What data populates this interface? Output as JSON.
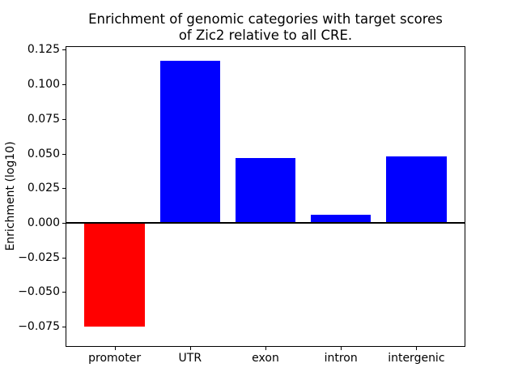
{
  "chart_data": {
    "type": "bar",
    "title": "Enrichment of genomic categories with target scores\nof Zic2 relative to all CRE.",
    "xlabel": "",
    "ylabel": "Enrichment (log10)",
    "categories": [
      "promoter",
      "UTR",
      "exon",
      "intron",
      "intergenic"
    ],
    "values": [
      -0.075,
      0.117,
      0.047,
      0.006,
      0.048
    ],
    "bar_colors": [
      "#ff0000",
      "#0000ff",
      "#0000ff",
      "#0000ff",
      "#0000ff"
    ],
    "yticks": [
      0.125,
      0.1,
      0.075,
      0.05,
      0.025,
      0.0,
      -0.025,
      -0.05,
      -0.075
    ],
    "ytick_labels": [
      "0.125",
      "0.100",
      "0.075",
      "0.050",
      "0.025",
      "0.000",
      "−0.025",
      "−0.050",
      "−0.075"
    ],
    "ylim": [
      -0.089,
      0.127
    ],
    "xlim": [
      -0.64,
      4.64
    ],
    "bar_width": 0.8,
    "grid": false,
    "zero_line": true,
    "legend": "none",
    "background_color": "#ffffff",
    "axis_color": "#000000"
  }
}
